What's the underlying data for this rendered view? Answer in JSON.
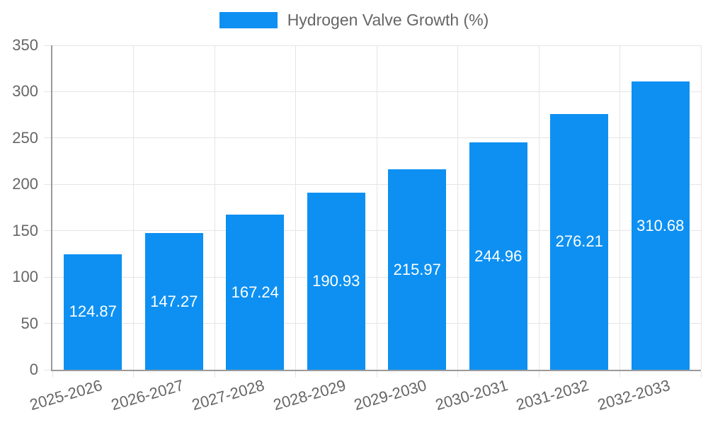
{
  "legend": {
    "label": "Hydrogen Valve Growth (%)"
  },
  "chart_data": {
    "type": "bar",
    "title": "",
    "series_name": "Hydrogen Valve Growth (%)",
    "categories": [
      "2025-2026",
      "2026-2027",
      "2027-2028",
      "2028-2029",
      "2029-2030",
      "2030-2031",
      "2031-2032",
      "2032-2033"
    ],
    "values": [
      124.87,
      147.27,
      167.24,
      190.93,
      215.97,
      244.96,
      276.21,
      310.68
    ],
    "value_labels": [
      "124.87",
      "147.27",
      "167.24",
      "190.93",
      "215.97",
      "244.96",
      "276.21",
      "310.68"
    ],
    "xlabel": "",
    "ylabel": "",
    "ylim": [
      0,
      350
    ],
    "ytick_step": 50,
    "ytick_labels": [
      "0",
      "50",
      "100",
      "150",
      "200",
      "250",
      "300",
      "350"
    ],
    "grid": true,
    "legend_position": "top-center",
    "colors": {
      "bar": "#0d90f2",
      "value_label": "#ffffff",
      "grid": "#e5e5e5",
      "axis": "#9a9a9a",
      "tick_text": "#666666"
    }
  }
}
